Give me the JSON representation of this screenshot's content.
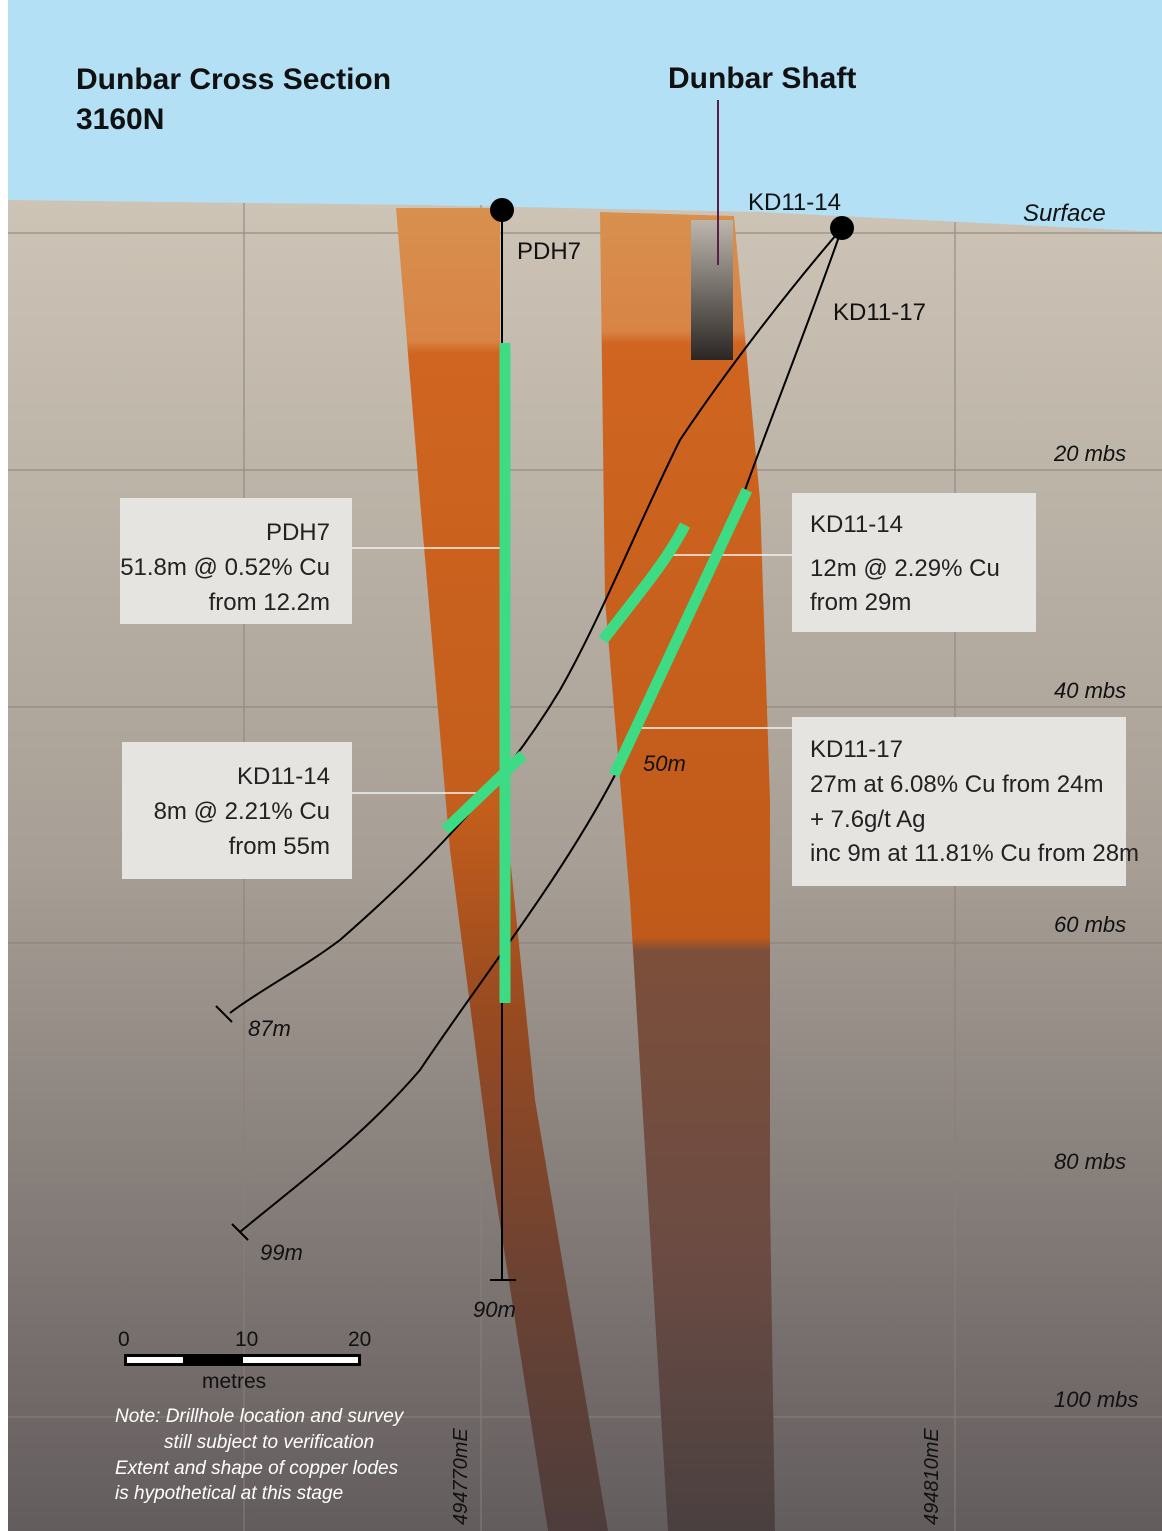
{
  "title": {
    "line1": "Dunbar Cross Section",
    "line2": "3160N"
  },
  "shaft_label": "Dunbar Shaft",
  "surface_label": "Surface",
  "depth_labels": [
    "20 mbs",
    "40 mbs",
    "60 mbs",
    "80 mbs",
    "100 mbs"
  ],
  "eastings": [
    "494770mE",
    "494810mE"
  ],
  "drillholes": {
    "pdh7": {
      "collar": "PDH7",
      "end_depth": "90m"
    },
    "kd11_14": {
      "collar": "KD11-14",
      "end_depth": "87m"
    },
    "kd11_17": {
      "collar": "KD11-17",
      "end_depth": "99m",
      "mid_depth": "50m"
    }
  },
  "callouts": {
    "pdh7": {
      "lines": [
        "PDH7",
        "51.8m @ 0.52% Cu",
        "from 12.2m"
      ]
    },
    "kd11_14_upper": {
      "lines": [
        "KD11-14",
        "12m @ 2.29% Cu",
        "from 29m"
      ]
    },
    "kd11_14_lower": {
      "lines": [
        "KD11-14",
        "8m @ 2.21% Cu",
        "from 55m"
      ]
    },
    "kd11_17": {
      "lines": [
        "KD11-17",
        "27m at 6.08% Cu from 24m",
        "+ 7.6g/t Ag",
        "inc 9m at 11.81% Cu from 28m"
      ]
    }
  },
  "scale_bar": {
    "ticks": [
      "0",
      "10",
      "20"
    ],
    "unit": "metres"
  },
  "note": {
    "lines": [
      "Note: Drillhole location and survey",
      "still subject to verification",
      "Extent and shape of copper lodes",
      "is hypothetical at this stage"
    ]
  },
  "colors": {
    "sky": "#b3e0f5",
    "ground_top": "#cbc2b4",
    "ground_bottom": "#6a6364",
    "lode": "#cf6a24",
    "intercept": "#3ddc84",
    "callout_box": "#e6e4e0"
  }
}
